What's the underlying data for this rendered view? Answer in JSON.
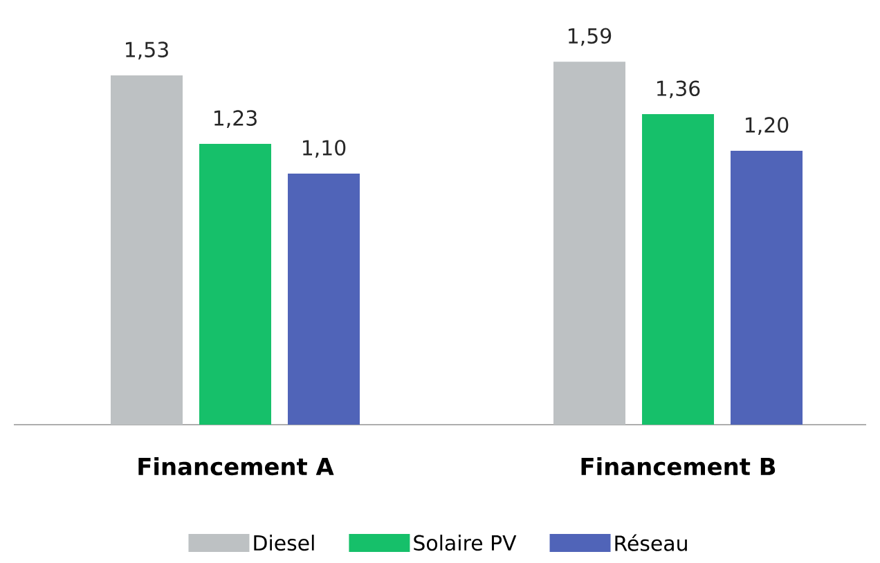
{
  "chart_data": {
    "type": "bar",
    "categories": [
      "Financement A",
      "Financement B"
    ],
    "series": [
      {
        "name": "Diesel",
        "color": "#bdc1c3",
        "values": [
          1.53,
          1.59
        ],
        "value_labels": [
          "1,53",
          "1,59"
        ]
      },
      {
        "name": "Solaire PV",
        "color": "#16c06a",
        "values": [
          1.23,
          1.36
        ],
        "value_labels": [
          "1,23",
          "1,36"
        ]
      },
      {
        "name": "Réseau",
        "color": "#5064b8",
        "values": [
          1.1,
          1.2
        ],
        "value_labels": [
          "1,10",
          "1,20"
        ]
      }
    ],
    "tick_labels": "x",
    "legend": "bottom"
  }
}
